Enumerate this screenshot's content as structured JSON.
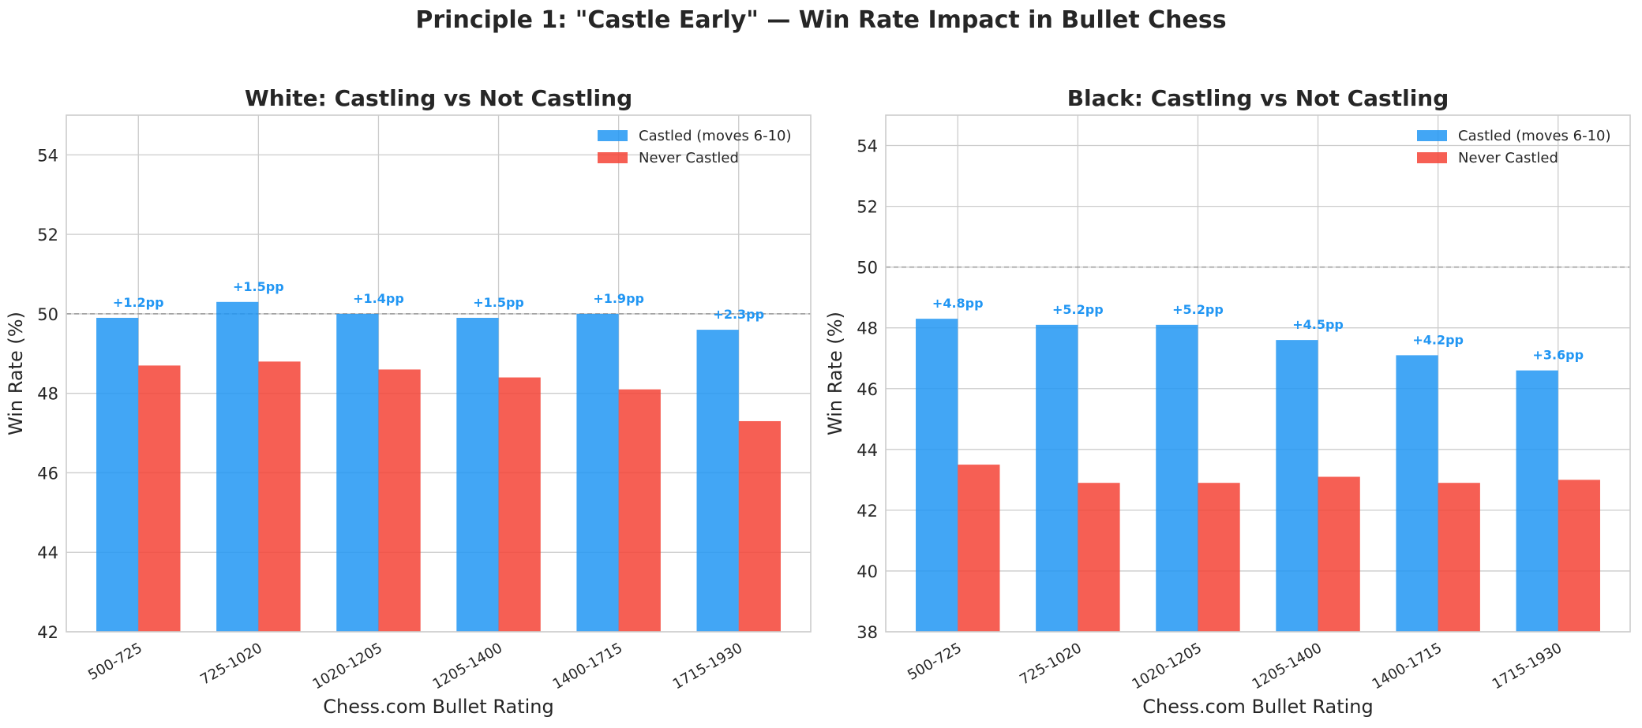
{
  "suptitle": "Principle 1: \"Castle Early\" — Win Rate Impact in Bullet Chess",
  "colors": {
    "castled": "#2196F3",
    "never": "#F44336",
    "grid": "#cccccc",
    "ref": "#999999"
  },
  "legend": {
    "castled": "Castled (moves 6-10)",
    "never": "Never Castled",
    "placement": "upper-right"
  },
  "chart_data": [
    {
      "type": "bar",
      "title": "White: Castling vs Not Castling",
      "xlabel": "Chess.com Bullet Rating",
      "ylabel": "Win Rate (%)",
      "ylim": [
        42,
        55
      ],
      "yticks": [
        42,
        44,
        46,
        48,
        50,
        52,
        54
      ],
      "reference_line": 50,
      "grid": true,
      "categories": [
        "500-725",
        "725-1020",
        "1020-1205",
        "1205-1400",
        "1400-1715",
        "1715-1930"
      ],
      "series": [
        {
          "name": "Castled (moves 6-10)",
          "values": [
            49.9,
            50.3,
            50.0,
            49.9,
            50.0,
            49.6
          ]
        },
        {
          "name": "Never Castled",
          "values": [
            48.7,
            48.8,
            48.6,
            48.4,
            48.1,
            47.3
          ]
        }
      ],
      "annotations": [
        "+1.2pp",
        "+1.5pp",
        "+1.4pp",
        "+1.5pp",
        "+1.9pp",
        "+2.3pp"
      ]
    },
    {
      "type": "bar",
      "title": "Black: Castling vs Not Castling",
      "xlabel": "Chess.com Bullet Rating",
      "ylabel": "Win Rate (%)",
      "ylim": [
        38,
        55
      ],
      "yticks": [
        38,
        40,
        42,
        44,
        46,
        48,
        50,
        52,
        54
      ],
      "reference_line": 50,
      "grid": true,
      "categories": [
        "500-725",
        "725-1020",
        "1020-1205",
        "1205-1400",
        "1400-1715",
        "1715-1930"
      ],
      "series": [
        {
          "name": "Castled (moves 6-10)",
          "values": [
            48.3,
            48.1,
            48.1,
            47.6,
            47.1,
            46.6
          ]
        },
        {
          "name": "Never Castled",
          "values": [
            43.5,
            42.9,
            42.9,
            43.1,
            42.9,
            43.0
          ]
        }
      ],
      "annotations": [
        "+4.8pp",
        "+5.2pp",
        "+5.2pp",
        "+4.5pp",
        "+4.2pp",
        "+3.6pp"
      ]
    }
  ]
}
